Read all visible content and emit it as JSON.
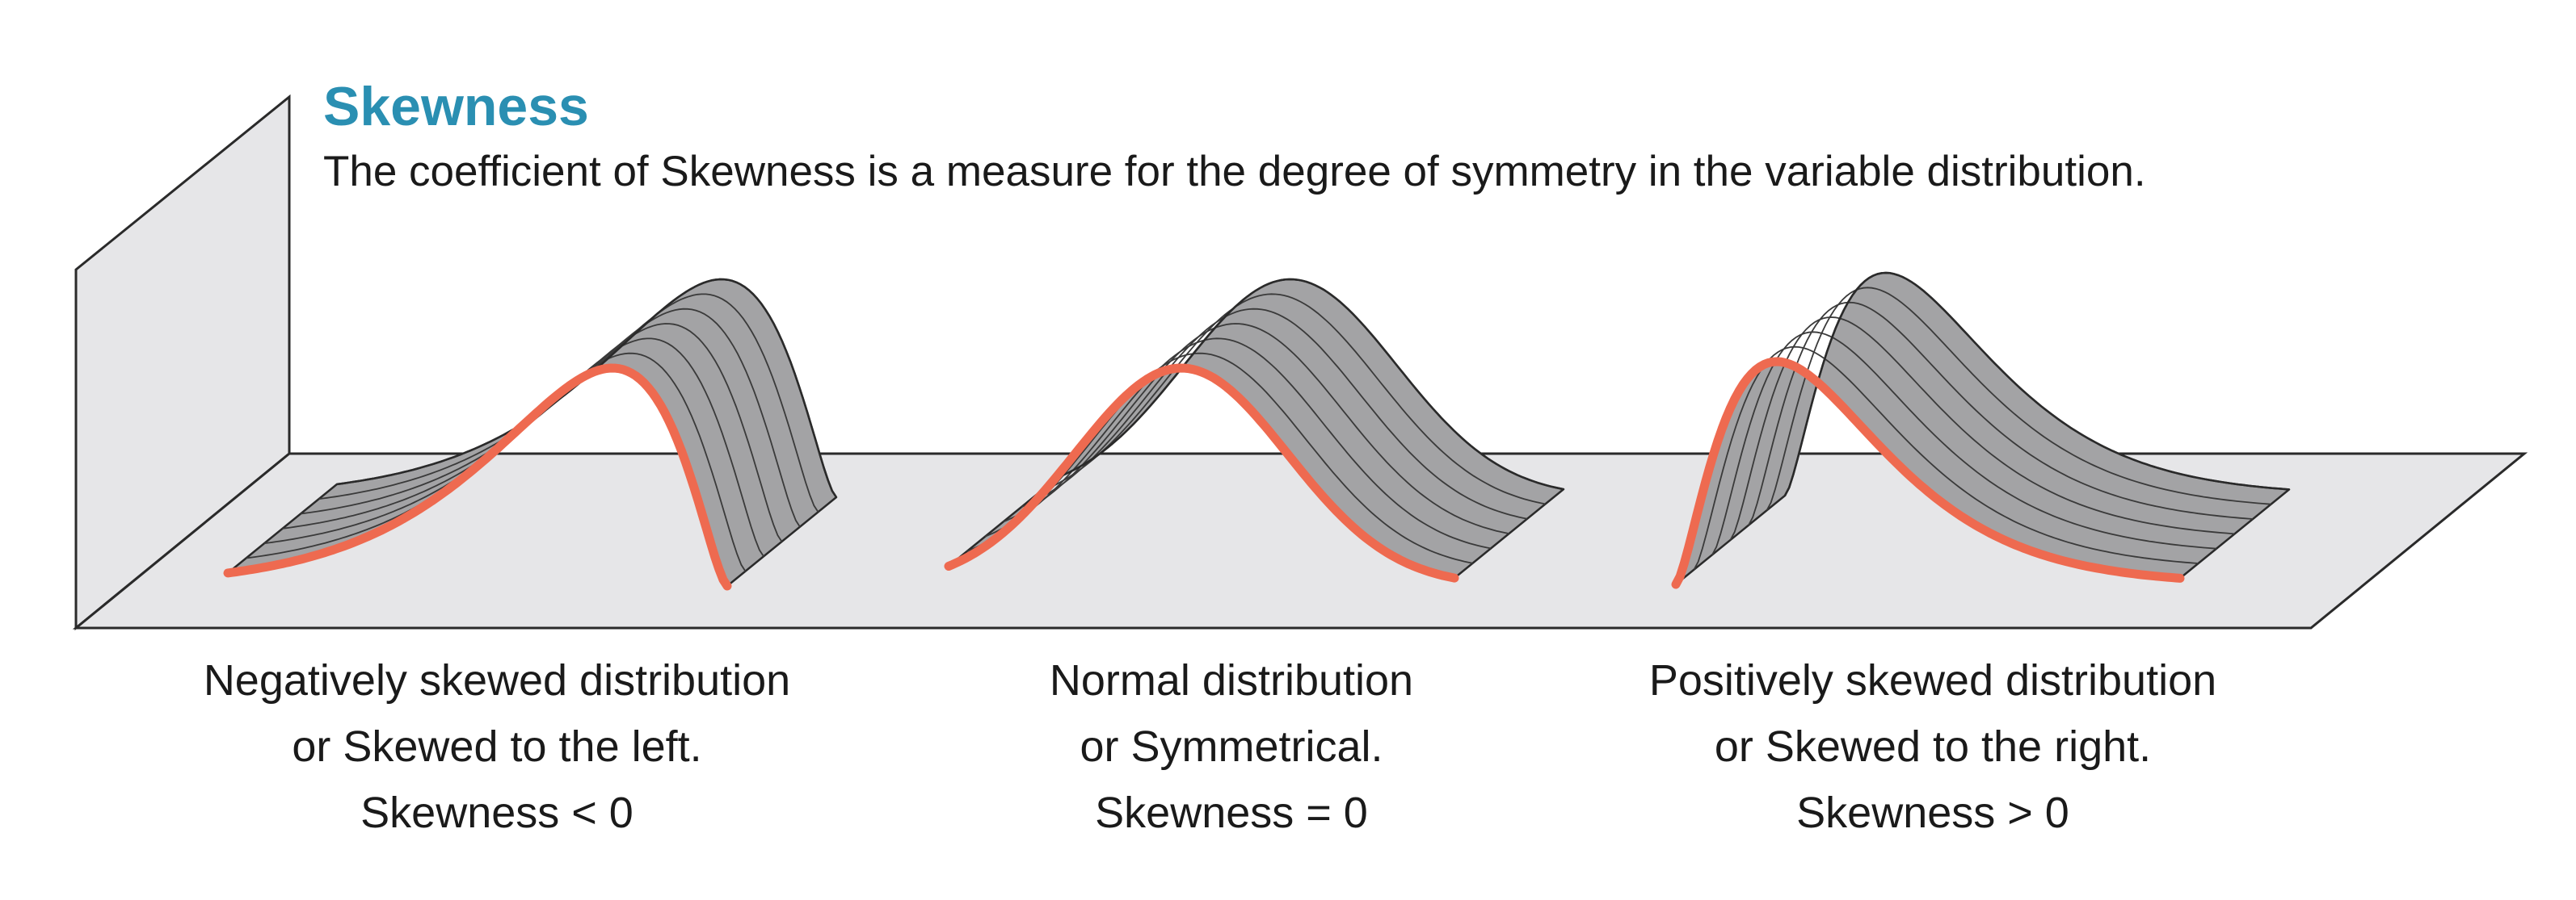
{
  "header": {
    "title": "Skewness",
    "subtitle": "The coefficient of Skewness is a measure for the degree of symmetry in the variable distribution."
  },
  "colors": {
    "title": "#2a8fb2",
    "curve": "#ee6a50",
    "surface": "#a3a3a5",
    "floor": "#e6e6e8",
    "wall": "#e6e6e8",
    "outline": "#2a2a2a"
  },
  "distributions": [
    {
      "key": "negative",
      "line1": "Negatively skewed distribution",
      "line2": "or Skewed to the left.",
      "line3": "Skewness < 0"
    },
    {
      "key": "normal",
      "line1": "Normal distribution",
      "line2": "or Symmetrical.",
      "line3": "Skewness = 0"
    },
    {
      "key": "positive",
      "line1": "Positively skewed distribution",
      "line2": "or Skewed to the right.",
      "line3": "Skewness > 0"
    }
  ]
}
